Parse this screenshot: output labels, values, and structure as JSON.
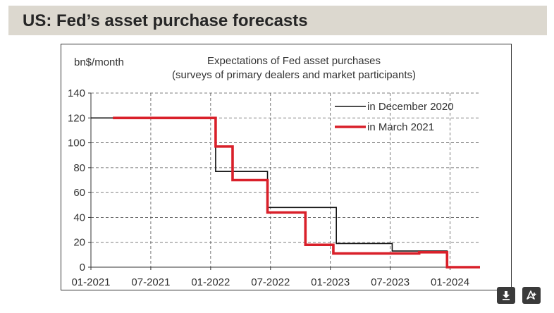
{
  "header": {
    "title": "US: Fed’s asset purchase forecasts"
  },
  "icons": {
    "download": "download-icon",
    "share": "share-icon"
  },
  "colors": {
    "header_bg": "#dcd8cf",
    "dec2020": "#111111",
    "mar2021": "#d9202a"
  },
  "chart_data": {
    "type": "line",
    "title": [
      "Expectations of Fed asset purchases",
      "(surveys of primary dealers and market participants)"
    ],
    "ylabel": "bn$/month",
    "xlabel": "",
    "ylim": [
      0,
      140
    ],
    "yticks": [
      0,
      20,
      40,
      60,
      80,
      100,
      120,
      140
    ],
    "xlim": [
      0,
      39
    ],
    "xticks": [
      {
        "pos": 0,
        "label": "01-2021"
      },
      {
        "pos": 6,
        "label": "07-2021"
      },
      {
        "pos": 12,
        "label": "01-2022"
      },
      {
        "pos": 18,
        "label": "07-2022"
      },
      {
        "pos": 24,
        "label": "01-2023"
      },
      {
        "pos": 30,
        "label": "07-2023"
      },
      {
        "pos": 36,
        "label": "01-2024"
      }
    ],
    "grid": true,
    "legend_position": "top-right",
    "series": [
      {
        "name": "in December 2020",
        "color": "#111111",
        "step": true,
        "x": [
          0,
          11.3,
          12.5,
          15.8,
          17.7,
          20.2,
          24.6,
          29.4,
          30.2,
          32.9,
          35.2,
          35.7,
          39
        ],
        "y": [
          120,
          120,
          77,
          77,
          48,
          48,
          19,
          19,
          13,
          13,
          13,
          0,
          0
        ]
      },
      {
        "name": "in March 2021",
        "color": "#d9202a",
        "step": true,
        "x": [
          2.2,
          11.3,
          12.5,
          14.2,
          17.7,
          18.6,
          21.5,
          24.3,
          27.3,
          29.4,
          32.9,
          35.7,
          39
        ],
        "y": [
          120,
          120,
          97,
          70,
          44,
          44,
          18,
          11,
          11,
          11,
          12,
          0,
          0
        ]
      }
    ]
  }
}
